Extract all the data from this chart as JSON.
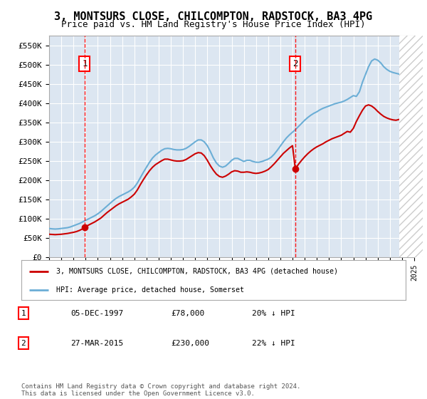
{
  "title": "3, MONTSURS CLOSE, CHILCOMPTON, RADSTOCK, BA3 4PG",
  "subtitle": "Price paid vs. HM Land Registry's House Price Index (HPI)",
  "title_fontsize": 11,
  "subtitle_fontsize": 9,
  "background_color": "#ffffff",
  "plot_bg_color": "#dce6f1",
  "grid_color": "#ffffff",
  "hpi_color": "#6baed6",
  "price_color": "#cc0000",
  "xmin": 1995,
  "xmax": 2025,
  "ymin": 0,
  "ymax": 575000,
  "yticks": [
    0,
    50000,
    100000,
    150000,
    200000,
    250000,
    300000,
    350000,
    400000,
    450000,
    500000,
    550000
  ],
  "ytick_labels": [
    "£0",
    "£50K",
    "£100K",
    "£150K",
    "£200K",
    "£250K",
    "£300K",
    "£350K",
    "£400K",
    "£450K",
    "£500K",
    "£550K"
  ],
  "purchase1_x": 1997.92,
  "purchase1_y": 78000,
  "purchase1_label": "1",
  "purchase1_date": "05-DEC-1997",
  "purchase1_price": "£78,000",
  "purchase1_hpi": "20% ↓ HPI",
  "purchase2_x": 2015.23,
  "purchase2_y": 230000,
  "purchase2_label": "2",
  "purchase2_date": "27-MAR-2015",
  "purchase2_price": "£230,000",
  "purchase2_hpi": "22% ↓ HPI",
  "legend_line1": "3, MONTSURS CLOSE, CHILCOMPTON, RADSTOCK, BA3 4PG (detached house)",
  "legend_line2": "HPI: Average price, detached house, Somerset",
  "footer": "Contains HM Land Registry data © Crown copyright and database right 2024.\nThis data is licensed under the Open Government Licence v3.0.",
  "hpi_data_x": [
    1995.0,
    1995.25,
    1995.5,
    1995.75,
    1996.0,
    1996.25,
    1996.5,
    1996.75,
    1997.0,
    1997.25,
    1997.5,
    1997.75,
    1998.0,
    1998.25,
    1998.5,
    1998.75,
    1999.0,
    1999.25,
    1999.5,
    1999.75,
    2000.0,
    2000.25,
    2000.5,
    2000.75,
    2001.0,
    2001.25,
    2001.5,
    2001.75,
    2002.0,
    2002.25,
    2002.5,
    2002.75,
    2003.0,
    2003.25,
    2003.5,
    2003.75,
    2004.0,
    2004.25,
    2004.5,
    2004.75,
    2005.0,
    2005.25,
    2005.5,
    2005.75,
    2006.0,
    2006.25,
    2006.5,
    2006.75,
    2007.0,
    2007.25,
    2007.5,
    2007.75,
    2008.0,
    2008.25,
    2008.5,
    2008.75,
    2009.0,
    2009.25,
    2009.5,
    2009.75,
    2010.0,
    2010.25,
    2010.5,
    2010.75,
    2011.0,
    2011.25,
    2011.5,
    2011.75,
    2012.0,
    2012.25,
    2012.5,
    2012.75,
    2013.0,
    2013.25,
    2013.5,
    2013.75,
    2014.0,
    2014.25,
    2014.5,
    2014.75,
    2015.0,
    2015.25,
    2015.5,
    2015.75,
    2016.0,
    2016.25,
    2016.5,
    2016.75,
    2017.0,
    2017.25,
    2017.5,
    2017.75,
    2018.0,
    2018.25,
    2018.5,
    2018.75,
    2019.0,
    2019.25,
    2019.5,
    2019.75,
    2020.0,
    2020.25,
    2020.5,
    2020.75,
    2021.0,
    2021.25,
    2021.5,
    2021.75,
    2022.0,
    2022.25,
    2022.5,
    2022.75,
    2023.0,
    2023.25,
    2023.5,
    2023.75,
    2024.0,
    2024.25
  ],
  "hpi_data_y": [
    75000,
    74000,
    73500,
    74000,
    75000,
    76000,
    77000,
    79000,
    82000,
    85000,
    88000,
    92000,
    96000,
    100000,
    104000,
    108000,
    113000,
    119000,
    126000,
    133000,
    140000,
    147000,
    153000,
    158000,
    162000,
    166000,
    170000,
    175000,
    182000,
    193000,
    207000,
    221000,
    234000,
    247000,
    258000,
    266000,
    272000,
    278000,
    282000,
    283000,
    282000,
    280000,
    279000,
    279000,
    280000,
    283000,
    288000,
    294000,
    300000,
    305000,
    305000,
    300000,
    290000,
    275000,
    258000,
    245000,
    237000,
    234000,
    237000,
    244000,
    252000,
    257000,
    257000,
    253000,
    249000,
    252000,
    252000,
    249000,
    247000,
    247000,
    249000,
    252000,
    255000,
    260000,
    268000,
    278000,
    289000,
    300000,
    310000,
    318000,
    325000,
    332000,
    340000,
    348000,
    356000,
    363000,
    369000,
    374000,
    378000,
    383000,
    387000,
    390000,
    393000,
    396000,
    399000,
    401000,
    403000,
    406000,
    410000,
    415000,
    420000,
    418000,
    430000,
    455000,
    475000,
    495000,
    510000,
    515000,
    512000,
    505000,
    495000,
    488000,
    483000,
    480000,
    478000,
    476000,
    475000,
    478000
  ],
  "price_data_x": [
    1995.0,
    1995.25,
    1995.5,
    1995.75,
    1996.0,
    1996.25,
    1996.5,
    1996.75,
    1997.0,
    1997.25,
    1997.5,
    1997.75,
    1997.92,
    1998.25,
    1998.5,
    1998.75,
    1999.0,
    1999.25,
    1999.5,
    1999.75,
    2000.0,
    2000.25,
    2000.5,
    2000.75,
    2001.0,
    2001.25,
    2001.5,
    2001.75,
    2002.0,
    2002.25,
    2002.5,
    2002.75,
    2003.0,
    2003.25,
    2003.5,
    2003.75,
    2004.0,
    2004.25,
    2004.5,
    2004.75,
    2005.0,
    2005.25,
    2005.5,
    2005.75,
    2006.0,
    2006.25,
    2006.5,
    2006.75,
    2007.0,
    2007.25,
    2007.5,
    2007.75,
    2008.0,
    2008.25,
    2008.5,
    2008.75,
    2009.0,
    2009.25,
    2009.5,
    2009.75,
    2010.0,
    2010.25,
    2010.5,
    2010.75,
    2011.0,
    2011.25,
    2011.5,
    2011.75,
    2012.0,
    2012.25,
    2012.5,
    2012.75,
    2013.0,
    2013.25,
    2013.5,
    2013.75,
    2014.0,
    2014.25,
    2014.5,
    2014.75,
    2015.0,
    2015.23,
    2015.5,
    2015.75,
    2016.0,
    2016.25,
    2016.5,
    2016.75,
    2017.0,
    2017.25,
    2017.5,
    2017.75,
    2018.0,
    2018.25,
    2018.5,
    2018.75,
    2019.0,
    2019.25,
    2019.5,
    2019.75,
    2020.0,
    2020.25,
    2020.5,
    2020.75,
    2021.0,
    2021.25,
    2021.5,
    2021.75,
    2022.0,
    2022.25,
    2022.5,
    2022.75,
    2023.0,
    2023.25,
    2023.5,
    2023.75,
    2024.0,
    2024.25
  ],
  "price_data_y": [
    60000,
    59500,
    59000,
    59500,
    60000,
    61000,
    62000,
    63500,
    65000,
    67000,
    70000,
    74000,
    78000,
    84000,
    88000,
    92000,
    97000,
    102000,
    109000,
    116000,
    122000,
    128000,
    134000,
    139000,
    143000,
    147000,
    151000,
    157000,
    164000,
    175000,
    189000,
    202000,
    214000,
    225000,
    234000,
    241000,
    246000,
    251000,
    255000,
    255000,
    253000,
    251000,
    250000,
    250000,
    251000,
    254000,
    259000,
    264000,
    269000,
    272000,
    271000,
    264000,
    252000,
    238000,
    226000,
    216000,
    210000,
    208000,
    211000,
    216000,
    222000,
    225000,
    224000,
    221000,
    221000,
    222000,
    221000,
    219000,
    218000,
    219000,
    221000,
    224000,
    228000,
    235000,
    243000,
    252000,
    261000,
    270000,
    277000,
    284000,
    290000,
    230000,
    242000,
    252000,
    261000,
    269000,
    276000,
    282000,
    287000,
    291000,
    295000,
    300000,
    304000,
    308000,
    311000,
    314000,
    317000,
    322000,
    327000,
    325000,
    335000,
    353000,
    368000,
    382000,
    393000,
    396000,
    393000,
    387000,
    379000,
    372000,
    366000,
    362000,
    359000,
    357000,
    356000,
    358000,
    361000,
    363000
  ]
}
